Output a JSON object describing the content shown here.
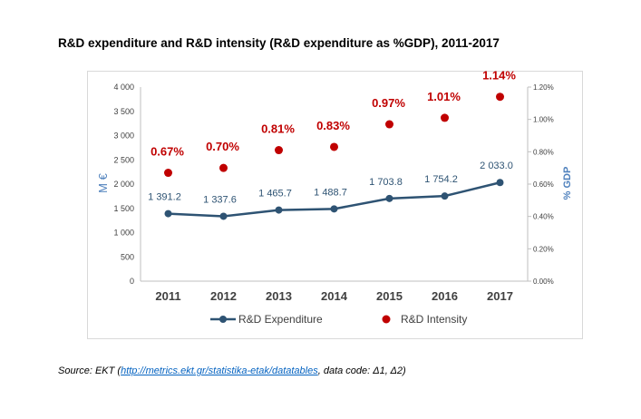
{
  "title": "R&D expenditure and R&D intensity (R&D expenditure as %GDP), 2011-2017",
  "source": {
    "prefix": "Source: EKT (",
    "link": "http://metrics.ekt.gr/statistika-etak/datatables",
    "suffix": ", data code: Δ1, Δ2)"
  },
  "chart_data": {
    "type": "line",
    "categories": [
      "2011",
      "2012",
      "2013",
      "2014",
      "2015",
      "2016",
      "2017"
    ],
    "ylabel": "M €",
    "y2label": "% GDP",
    "ylim": [
      0,
      4000
    ],
    "y_ticks": [
      "0",
      "500",
      "1 000",
      "1 500",
      "2 000",
      "2 500",
      "3 000",
      "3 500",
      "4 000"
    ],
    "y2lim": [
      0,
      1.2
    ],
    "y2_ticks": [
      "0.00%",
      "0.20%",
      "0.40%",
      "0.60%",
      "0.80%",
      "1.00%",
      "1.20%"
    ],
    "grid": false,
    "legend_position": "bottom",
    "series": [
      {
        "name": "R&D Expenditure",
        "axis": "left",
        "style": "line-marker",
        "color": "#2e5373",
        "label_color": "#2e5373",
        "values": [
          1391.2,
          1337.6,
          1465.7,
          1488.7,
          1703.8,
          1754.2,
          2033.0
        ],
        "labels": [
          "1 391.2",
          "1 337.6",
          "1 465.7",
          "1 488.7",
          "1 703.8",
          "1 754.2",
          "2 033.0"
        ]
      },
      {
        "name": "R&D Intensity",
        "axis": "right",
        "style": "marker",
        "color": "#c00000",
        "label_color": "#c00000",
        "values": [
          0.67,
          0.7,
          0.81,
          0.83,
          0.97,
          1.01,
          1.14
        ],
        "labels": [
          "0.67%",
          "0.70%",
          "0.81%",
          "0.83%",
          "0.97%",
          "1.01%",
          "1.14%"
        ]
      }
    ]
  }
}
